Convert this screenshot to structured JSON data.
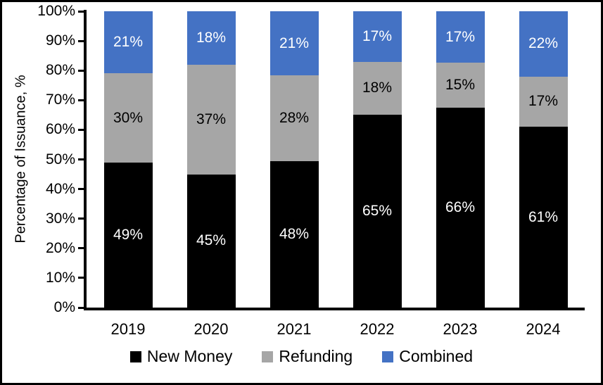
{
  "chart_data": {
    "type": "bar",
    "stacked": true,
    "title": "",
    "xlabel": "",
    "ylabel": "Percentage of Issuance, %",
    "ylim": [
      0,
      100
    ],
    "grid": false,
    "legend_position": "bottom",
    "categories": [
      "2019",
      "2020",
      "2021",
      "2022",
      "2023",
      "2024"
    ],
    "series": [
      {
        "name": "New Money",
        "color": "#000000",
        "text_color": "#FFFFFF",
        "values": [
          49,
          45,
          48,
          65,
          66,
          61
        ],
        "labels": [
          "49%",
          "45%",
          "48%",
          "65%",
          "66%",
          "61%"
        ]
      },
      {
        "name": "Refunding",
        "color": "#A6A6A6",
        "text_color": "#000000",
        "values": [
          30,
          37,
          28,
          18,
          15,
          17
        ],
        "labels": [
          "30%",
          "37%",
          "28%",
          "18%",
          "15%",
          "17%"
        ]
      },
      {
        "name": "Combined",
        "color": "#4472C4",
        "text_color": "#FFFFFF",
        "values": [
          21,
          18,
          21,
          17,
          17,
          22
        ],
        "labels": [
          "21%",
          "18%",
          "21%",
          "17%",
          "17%",
          "22%"
        ]
      }
    ],
    "yticks": {
      "values": [
        0,
        10,
        20,
        30,
        40,
        50,
        60,
        70,
        80,
        90,
        100
      ],
      "labels": [
        "0%",
        "10%",
        "20%",
        "30%",
        "40%",
        "50%",
        "60%",
        "70%",
        "80%",
        "90%",
        "100%"
      ]
    }
  }
}
